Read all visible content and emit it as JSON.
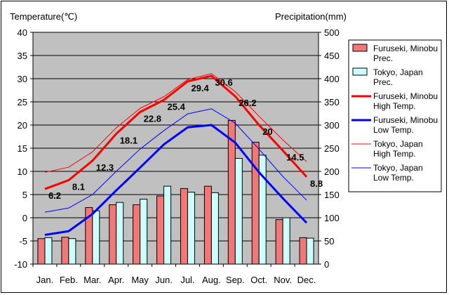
{
  "chart_data": {
    "type": "bar",
    "categories": [
      "Jan.",
      "Feb.",
      "Mar.",
      "Apr.",
      "May",
      "Jun.",
      "Jul.",
      "Aug.",
      "Sep.",
      "Oct.",
      "Nov.",
      "Dec."
    ],
    "y_left": {
      "label": "Temperature(℃)",
      "range": [
        -10,
        40
      ],
      "ticks": [
        -10,
        -5,
        0,
        5,
        10,
        15,
        20,
        25,
        30,
        35,
        40
      ]
    },
    "y_right": {
      "label": "Precipitation(mm)",
      "range": [
        0,
        500
      ],
      "ticks": [
        0,
        50,
        100,
        150,
        200,
        250,
        300,
        350,
        400,
        450,
        500
      ]
    },
    "grid": true,
    "legend_position": "right",
    "series": [
      {
        "name": "Furuseki, Minobu Prec.",
        "legend_lines": [
          "Furuseki, Minobu",
          "Prec."
        ],
        "type": "bar",
        "axis": "right",
        "color": "#f07878",
        "values": [
          55,
          58,
          122,
          128,
          128,
          147,
          163,
          168,
          310,
          263,
          96,
          57
        ]
      },
      {
        "name": "Tokyo, Japan Prec.",
        "legend_lines": [
          "Tokyo, Japan",
          "Prec."
        ],
        "type": "bar",
        "axis": "right",
        "color": "#ccffff",
        "values": [
          57,
          55,
          115,
          133,
          140,
          168,
          155,
          154,
          228,
          235,
          100,
          56
        ]
      },
      {
        "name": "Furuseki, Minobu High Temp.",
        "legend_lines": [
          "Furuseki, Minobu",
          "High Temp."
        ],
        "type": "line",
        "axis": "left",
        "color": "#ff0000",
        "width": 3,
        "values": [
          6.2,
          8.1,
          12.3,
          18.1,
          22.8,
          25.4,
          29.4,
          30.6,
          26.2,
          20,
          14.5,
          8.8
        ],
        "labels": [
          "6.2",
          "8.1",
          "12.3",
          "18.1",
          "22.8",
          "25.4",
          "29.4",
          "30.6",
          "26.2",
          "20",
          "14.5",
          "8.8"
        ]
      },
      {
        "name": "Furuseki, Minobu Low Temp.",
        "legend_lines": [
          "Furuseki, Minobu",
          "Low Temp."
        ],
        "type": "line",
        "axis": "left",
        "color": "#0000ff",
        "width": 3,
        "values": [
          -3.7,
          -2.9,
          0.8,
          5.9,
          10.8,
          15.8,
          19.5,
          20.0,
          16.2,
          9.8,
          4.2,
          -1.1
        ]
      },
      {
        "name": "Tokyo, Japan High Temp.",
        "legend_lines": [
          "Tokyo, Japan",
          "High Temp."
        ],
        "type": "line",
        "axis": "left",
        "color": "#ff0000",
        "width": 1,
        "values": [
          9.8,
          10.9,
          14.2,
          19.4,
          23.6,
          26.1,
          29.8,
          31.1,
          27.2,
          21.9,
          16.8,
          12.1
        ]
      },
      {
        "name": "Tokyo, Japan Low Temp.",
        "legend_lines": [
          "Tokyo, Japan",
          "Low Temp."
        ],
        "type": "line",
        "axis": "left",
        "color": "#0000ff",
        "width": 1,
        "values": [
          1.2,
          2.1,
          5.0,
          10.0,
          14.8,
          18.8,
          22.4,
          23.5,
          20.4,
          14.8,
          8.9,
          3.8
        ]
      }
    ]
  }
}
